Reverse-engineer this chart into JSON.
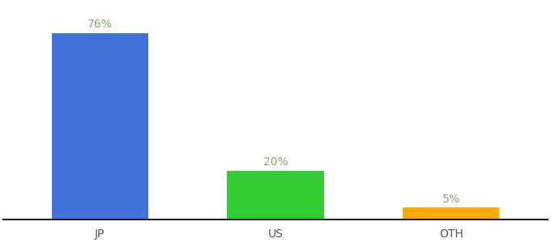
{
  "categories": [
    "JP",
    "US",
    "OTH"
  ],
  "values": [
    76,
    20,
    5
  ],
  "bar_colors": [
    "#4472db",
    "#33cc33",
    "#ffaa00"
  ],
  "label_texts": [
    "76%",
    "20%",
    "5%"
  ],
  "background_color": "#ffffff",
  "label_color": "#999977",
  "tick_color": "#555555",
  "ylim": [
    0,
    88
  ],
  "bar_width": 0.55,
  "figsize": [
    6.8,
    3.0
  ],
  "dpi": 100,
  "label_fontsize": 10,
  "tick_fontsize": 10
}
